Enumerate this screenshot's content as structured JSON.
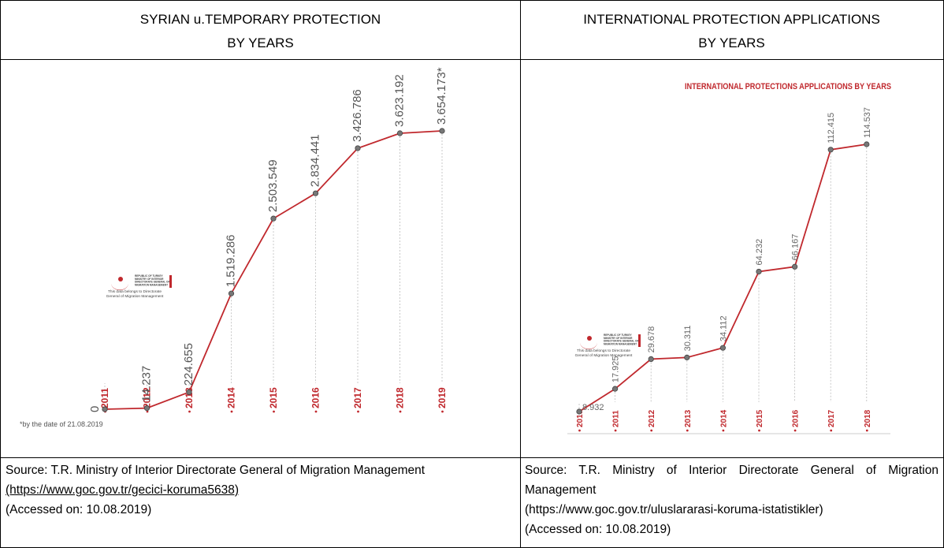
{
  "headers": [
    [
      "SYRIAN u.TEMPORARY PROTECTION",
      "BY YEARS"
    ],
    [
      "INTERNATIONAL PROTECTION APPLICATIONS",
      "BY YEARS"
    ]
  ],
  "chart_data": [
    {
      "type": "line",
      "color": "#c0282d",
      "categories": [
        "2011",
        "2012",
        "2013",
        "2014",
        "2015",
        "2016",
        "2017",
        "2018",
        "2019"
      ],
      "values": [
        0,
        14237,
        224655,
        1519286,
        2503549,
        2834441,
        3426786,
        3623192,
        3654173
      ],
      "value_labels": [
        "0",
        "14.237",
        "224.655",
        "1.519.286",
        "2.503.549",
        "2.834.441",
        "3.426.786",
        "3.623.192",
        "3.654.173*"
      ],
      "footnote": "*by the date of 21.08.2019",
      "logo": [
        "REPUBLIC OF TURKEY",
        "MINISTRY OF INTERIOR",
        "DIRECTORATE GENERAL OF",
        "MIGRATION MANAGEMENT",
        "This data belongs to Directorate",
        "General of Migration Management"
      ]
    },
    {
      "type": "line",
      "color": "#c0282d",
      "title": "INTERNATIONAL PROTECTIONS APPLICATIONS BY YEARS",
      "categories": [
        "2010",
        "2011",
        "2012",
        "2013",
        "2014",
        "2015",
        "2016",
        "2017",
        "2018"
      ],
      "values": [
        8932,
        17925,
        29678,
        30311,
        34112,
        64232,
        66167,
        112415,
        114537
      ],
      "value_labels": [
        "8.932",
        "17.925",
        "29.678",
        "30.311",
        "34.112",
        "64.232",
        "66.167",
        "112.415",
        "114.537"
      ],
      "logo": [
        "REPUBLIC OF TURKEY",
        "MINISTRY OF INTERIOR",
        "DIRECTORATE GENERAL OF",
        "MIGRATION MANAGEMENT",
        "This data belongs to Directorate",
        "General of Migration Management"
      ]
    }
  ],
  "sources": [
    {
      "text": "Source: T.R. Ministry of Interior Directorate General of Migration Management",
      "link": "(https://www.goc.gov.tr/gecici-koruma5638)",
      "accessed": "(Accessed on: 10.08.2019)"
    },
    {
      "text": "Source: T.R. Ministry of Interior Directorate General of Migration Management",
      "link": "(https://www.goc.gov.tr/uluslararasi-koruma-istatistikler)",
      "accessed": "(Accessed on: 10.08.2019)"
    }
  ]
}
